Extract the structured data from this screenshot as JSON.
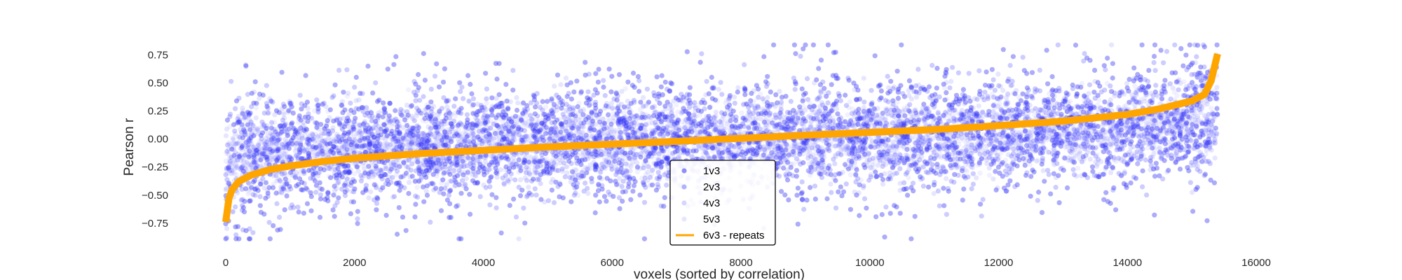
{
  "chart_data": {
    "type": "scatter",
    "title": "",
    "xlabel": "voxels (sorted by correlation)",
    "ylabel": "Pearson r",
    "xlim": [
      0,
      16000
    ],
    "ylim": [
      -0.92,
      0.86
    ],
    "x_ticks": [
      0,
      2000,
      4000,
      6000,
      8000,
      10000,
      12000,
      14000,
      16000
    ],
    "y_ticks": [
      -0.75,
      -0.5,
      -0.25,
      0.0,
      0.25,
      0.5,
      0.75
    ],
    "x_tick_labels": [
      "0",
      "2000",
      "4000",
      "6000",
      "8000",
      "10000",
      "12000",
      "14000",
      "16000"
    ],
    "y_tick_labels": [
      "−0.75",
      "−0.50",
      "−0.25",
      "0.00",
      "0.25",
      "0.50",
      "0.75"
    ],
    "grid": false,
    "legend_position": "lower-center",
    "n_voxels": 15400,
    "series": [
      {
        "name": "1v3",
        "kind": "scatter",
        "color": "#3a3af5",
        "opacity": 0.42,
        "y_spread_sd": 0.3
      },
      {
        "name": "2v3",
        "kind": "scatter",
        "color": "#5a5aff",
        "opacity": 0.3,
        "y_spread_sd": 0.24
      },
      {
        "name": "4v3",
        "kind": "scatter",
        "color": "#8c8cff",
        "opacity": 0.22,
        "y_spread_sd": 0.18
      },
      {
        "name": "5v3",
        "kind": "scatter",
        "color": "#b4b4ff",
        "opacity": 0.18,
        "y_spread_sd": 0.14
      },
      {
        "name": "6v3 - repeats",
        "kind": "line",
        "color": "#ffa500",
        "x": [
          0,
          30,
          100,
          200,
          400,
          700,
          1000,
          1500,
          2000,
          3000,
          4000,
          5000,
          6000,
          7000,
          7700,
          8000,
          9000,
          10000,
          11000,
          12000,
          13000,
          14000,
          14500,
          15000,
          15200,
          15300,
          15400
        ],
        "y": [
          -0.74,
          -0.56,
          -0.45,
          -0.38,
          -0.32,
          -0.27,
          -0.24,
          -0.2,
          -0.17,
          -0.13,
          -0.1,
          -0.07,
          -0.045,
          -0.02,
          0.0,
          0.007,
          0.035,
          0.06,
          0.085,
          0.12,
          0.16,
          0.22,
          0.27,
          0.34,
          0.4,
          0.52,
          0.76
        ]
      }
    ]
  }
}
